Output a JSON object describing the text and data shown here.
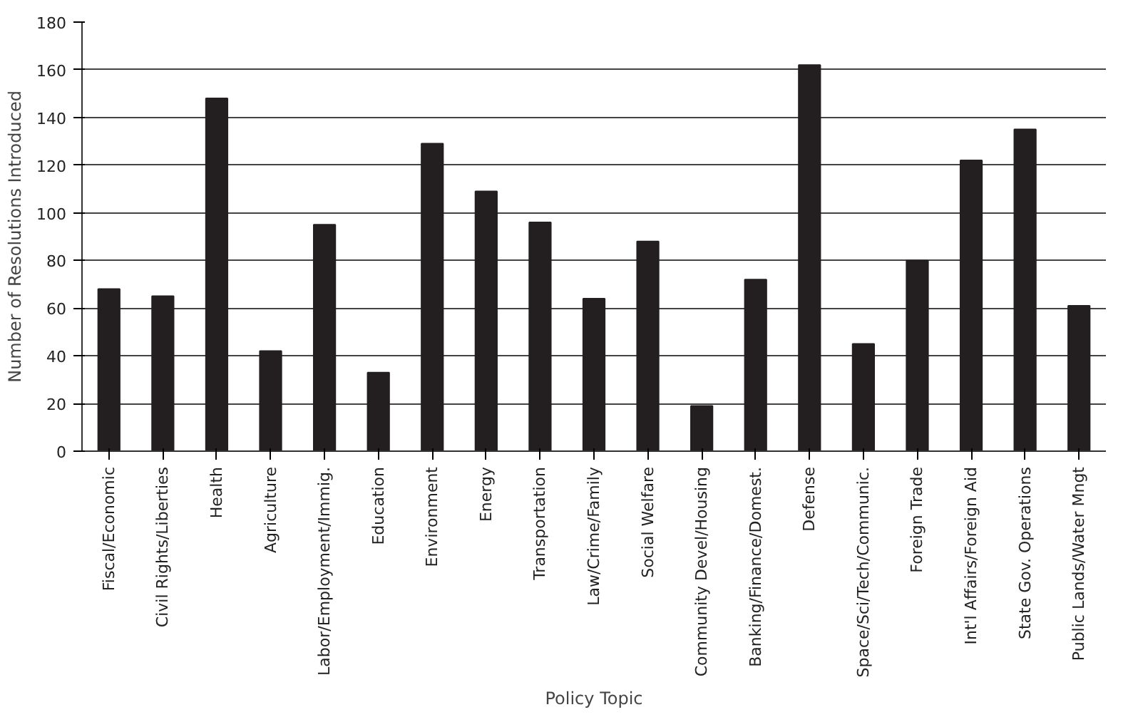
{
  "chart_data": {
    "type": "bar",
    "xlabel": "Policy Topic",
    "ylabel": "Number of Resolutions Introduced",
    "categories": [
      "Fiscal/Economic",
      "Civil Rights/Liberties",
      "Health",
      "Agriculture",
      "Labor/Employment/Immig.",
      "Education",
      "Environment",
      "Energy",
      "Transportation",
      "Law/Crime/Family",
      "Social Welfare",
      "Community Devel/Housing",
      "Banking/Finance/Domest.",
      "Defense",
      "Space/Sci/Tech/Communic.",
      "Foreign Trade",
      "Int'l Affairs/Foreign Aid",
      "State Gov. Operations",
      "Public Lands/Water Mngt"
    ],
    "values": [
      68,
      65,
      148,
      42,
      95,
      33,
      129,
      109,
      96,
      64,
      88,
      19,
      72,
      162,
      45,
      80,
      122,
      135,
      61
    ],
    "color": "#231f20",
    "ylim": [
      0,
      180
    ],
    "yticks": [
      0,
      20,
      40,
      60,
      80,
      100,
      120,
      140,
      160,
      180
    ],
    "grid": "y"
  }
}
